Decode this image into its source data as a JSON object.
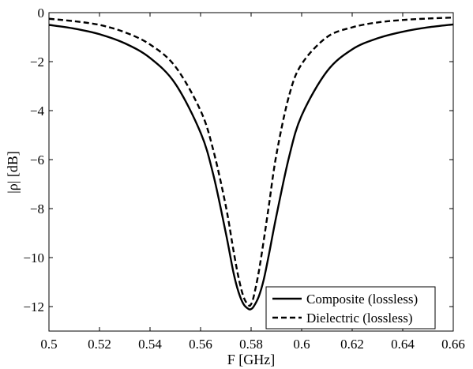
{
  "chart_data": {
    "type": "line",
    "title": "",
    "xlabel": "F [GHz]",
    "ylabel": "|ρ| [dB]",
    "xlim": [
      0.5,
      0.66
    ],
    "ylim": [
      -13,
      0
    ],
    "xticks": [
      0.5,
      0.52,
      0.54,
      0.56,
      0.58,
      0.6,
      0.62,
      0.64,
      0.66
    ],
    "yticks": [
      0,
      -2,
      -4,
      -6,
      -8,
      -10,
      -12
    ],
    "xtick_labels": [
      "0.5",
      "0.52",
      "0.54",
      "0.56",
      "0.58",
      "0.6",
      "0.62",
      "0.64",
      "0.66"
    ],
    "ytick_labels": [
      "0",
      "−2",
      "−4",
      "−6",
      "−8",
      "−10",
      "−12"
    ],
    "grid": false,
    "legend_position": "bottom-right",
    "series": [
      {
        "name": "Composite (lossless)",
        "line_style": "solid",
        "color": "#000000",
        "x": [
          0.5,
          0.51,
          0.52,
          0.53,
          0.54,
          0.55,
          0.56,
          0.565,
          0.57,
          0.573,
          0.575,
          0.577,
          0.579,
          0.58,
          0.581,
          0.583,
          0.585,
          0.587,
          0.59,
          0.595,
          0.6,
          0.61,
          0.62,
          0.63,
          0.64,
          0.65,
          0.66
        ],
        "y": [
          -0.5,
          -0.65,
          -0.88,
          -1.25,
          -1.85,
          -2.9,
          -4.9,
          -6.6,
          -9.0,
          -10.6,
          -11.4,
          -11.9,
          -12.1,
          -12.1,
          -12.0,
          -11.6,
          -10.9,
          -9.9,
          -8.3,
          -5.9,
          -4.2,
          -2.4,
          -1.5,
          -1.05,
          -0.78,
          -0.6,
          -0.48
        ]
      },
      {
        "name": "Dielectric (lossless)",
        "line_style": "dashed",
        "color": "#000000",
        "x": [
          0.5,
          0.51,
          0.52,
          0.53,
          0.54,
          0.55,
          0.56,
          0.565,
          0.57,
          0.573,
          0.575,
          0.577,
          0.579,
          0.58,
          0.581,
          0.583,
          0.585,
          0.587,
          0.59,
          0.595,
          0.6,
          0.61,
          0.62,
          0.63,
          0.64,
          0.65,
          0.66
        ],
        "y": [
          -0.25,
          -0.35,
          -0.5,
          -0.8,
          -1.3,
          -2.2,
          -4.0,
          -5.6,
          -7.9,
          -9.7,
          -10.8,
          -11.6,
          -11.95,
          -11.9,
          -11.6,
          -10.6,
          -9.3,
          -7.9,
          -5.8,
          -3.4,
          -2.1,
          -1.0,
          -0.6,
          -0.4,
          -0.3,
          -0.24,
          -0.2
        ]
      }
    ]
  }
}
